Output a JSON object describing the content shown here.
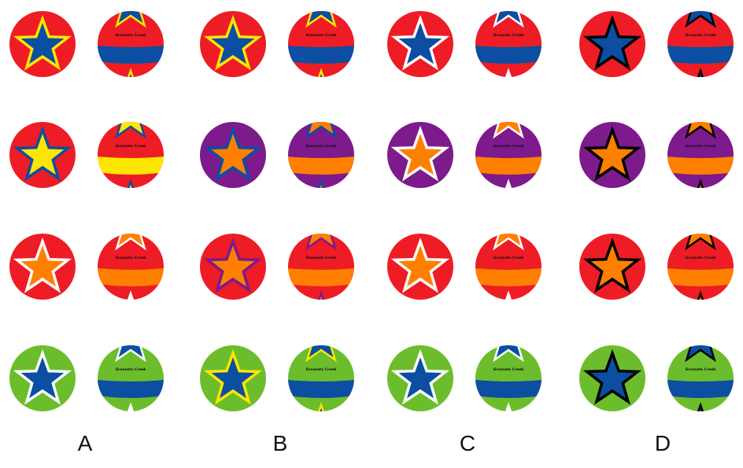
{
  "colors": {
    "red": "#ee1c25",
    "blue": "#0b4ea2",
    "navy": "#1035a0",
    "yellow": "#ffe600",
    "orange": "#ff7f00",
    "purple": "#7d1a8c",
    "green": "#6cbd2b",
    "white": "#ffffff",
    "black": "#000000"
  },
  "columns": [
    {
      "label": "A"
    },
    {
      "label": "B"
    },
    {
      "label": "C"
    },
    {
      "label": "D"
    }
  ],
  "ball_text": "Grosseto Creek",
  "grid": [
    [
      {
        "bg": "red",
        "star": "blue",
        "outline": "yellow"
      },
      {
        "bg": "red",
        "star": "blue",
        "outline": "yellow"
      },
      {
        "bg": "red",
        "star": "blue",
        "outline": "white"
      },
      {
        "bg": "red",
        "star": "blue",
        "outline": "black"
      }
    ],
    [
      {
        "bg": "red",
        "star": "yellow",
        "outline": "blue"
      },
      {
        "bg": "purple",
        "star": "orange",
        "outline": "blue"
      },
      {
        "bg": "purple",
        "star": "orange",
        "outline": "white"
      },
      {
        "bg": "purple",
        "star": "orange",
        "outline": "black"
      }
    ],
    [
      {
        "bg": "red",
        "star": "orange",
        "outline": "white"
      },
      {
        "bg": "red",
        "star": "orange",
        "outline": "purple"
      },
      {
        "bg": "red",
        "star": "orange",
        "outline": "white"
      },
      {
        "bg": "red",
        "star": "orange",
        "outline": "black"
      }
    ],
    [
      {
        "bg": "green",
        "star": "blue",
        "outline": "white"
      },
      {
        "bg": "green",
        "star": "blue",
        "outline": "yellow"
      },
      {
        "bg": "green",
        "star": "blue",
        "outline": "white"
      },
      {
        "bg": "green",
        "star": "blue",
        "outline": "black"
      }
    ]
  ]
}
